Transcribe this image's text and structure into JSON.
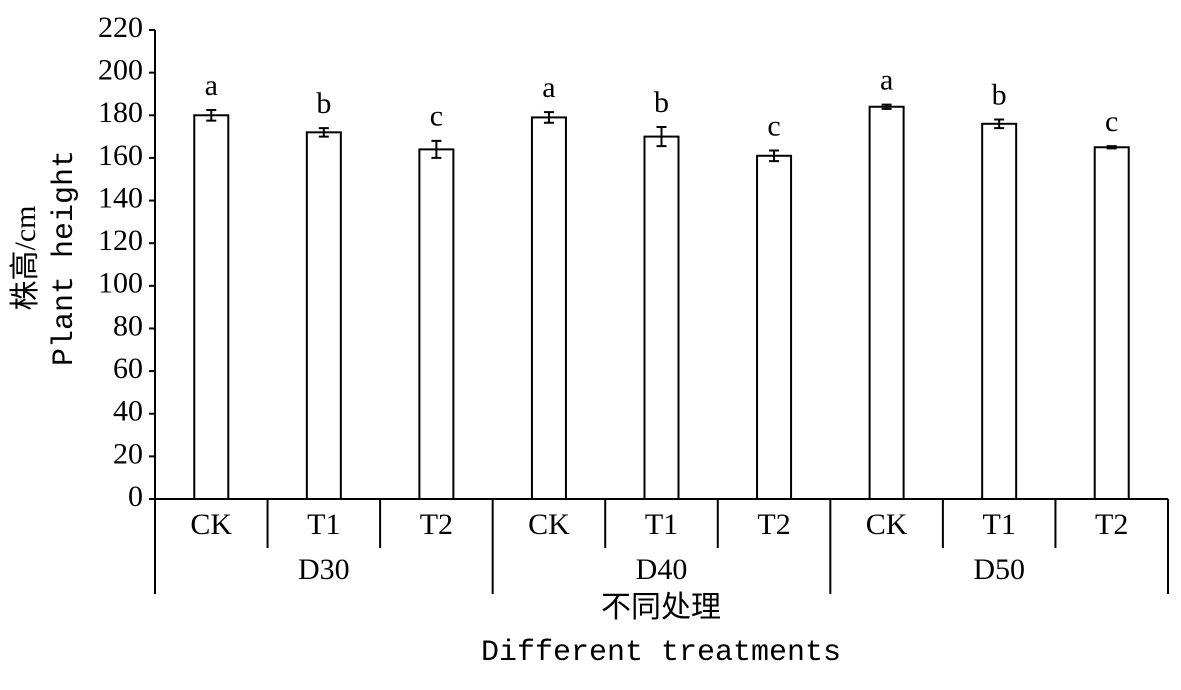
{
  "chart_data": {
    "type": "bar",
    "categories": [
      "CK",
      "T1",
      "T2",
      "CK",
      "T1",
      "T2",
      "CK",
      "T1",
      "T2"
    ],
    "groups": [
      "D30",
      "D40",
      "D50"
    ],
    "series": [
      {
        "values": [
          180,
          172,
          164,
          179,
          170,
          161,
          184,
          176,
          165
        ],
        "errors": [
          2.5,
          2,
          4,
          2.5,
          4.5,
          2.5,
          1,
          2,
          0.5
        ],
        "letters": [
          "a",
          "b",
          "c",
          "a",
          "b",
          "c",
          "a",
          "b",
          "c"
        ],
        "color": "#ffffff",
        "edgecolor": "#000000"
      }
    ],
    "ylabel": [
      "株高/cm",
      "Plant height"
    ],
    "xlabel": [
      "不同处理",
      "Different treatments"
    ],
    "ylim": [
      0,
      220
    ],
    "yticks": [
      0,
      20,
      40,
      60,
      80,
      100,
      120,
      140,
      160,
      180,
      200,
      220
    ]
  }
}
